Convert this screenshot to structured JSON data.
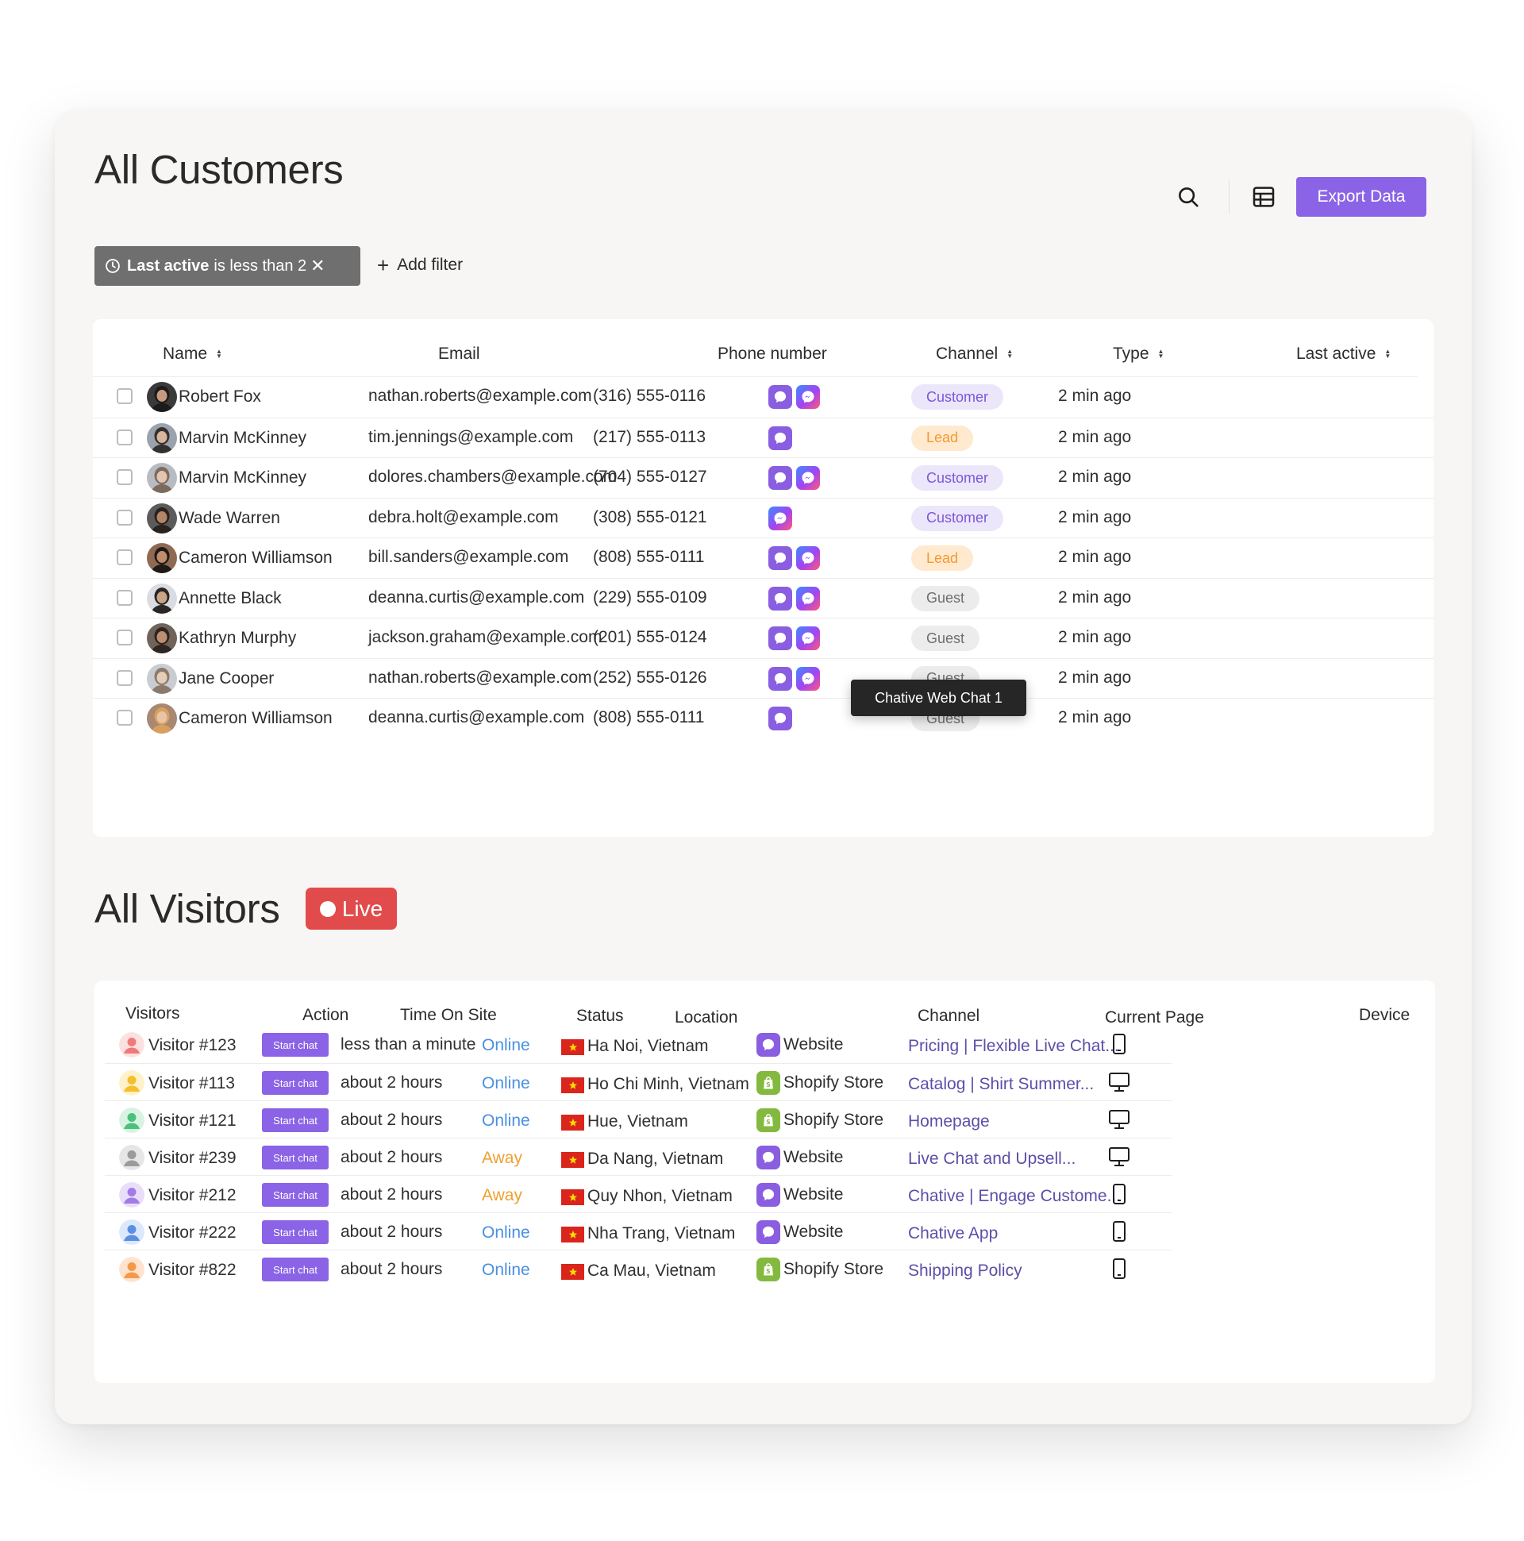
{
  "customers": {
    "title": "All Customers",
    "export_label": "Export Data",
    "filter": {
      "field": "Last active",
      "condition": "is less than 2",
      "remove": "✕"
    },
    "add_filter_label": "Add filter",
    "columns": {
      "name": "Name",
      "email": "Email",
      "phone": "Phone number",
      "channel": "Channel",
      "type": "Type",
      "last_active": "Last active"
    },
    "rows": [
      {
        "name": "Robert Fox",
        "email": "nathan.roberts@example.com",
        "phone": "(316) 555-0116",
        "type": "Customer",
        "last_active": "2 min ago"
      },
      {
        "name": "Marvin McKinney",
        "email": "tim.jennings@example.com",
        "phone": "(217) 555-0113",
        "type": "Lead",
        "last_active": "2 min ago"
      },
      {
        "name": "Marvin McKinney",
        "email": "dolores.chambers@example.com",
        "phone": "(704) 555-0127",
        "type": "Customer",
        "last_active": "2 min ago"
      },
      {
        "name": "Wade Warren",
        "email": "debra.holt@example.com",
        "phone": "(308) 555-0121",
        "type": "Customer",
        "last_active": "2 min ago"
      },
      {
        "name": "Cameron Williamson",
        "email": "bill.sanders@example.com",
        "phone": "(808) 555-0111",
        "type": "Lead",
        "last_active": "2 min ago"
      },
      {
        "name": "Annette Black",
        "email": "deanna.curtis@example.com",
        "phone": "(229) 555-0109",
        "type": "Guest",
        "last_active": "2 min ago"
      },
      {
        "name": "Kathryn Murphy",
        "email": "jackson.graham@example.com",
        "phone": "(201) 555-0124",
        "type": "Guest",
        "last_active": "2 min ago"
      },
      {
        "name": "Jane Cooper",
        "email": "nathan.roberts@example.com",
        "phone": "(252) 555-0126",
        "type": "Guest",
        "last_active": "2 min ago"
      },
      {
        "name": "Cameron Williamson",
        "email": "deanna.curtis@example.com",
        "phone": "(808) 555-0111",
        "type": "Guest",
        "last_active": "2 min ago"
      }
    ],
    "tooltip": "Chative Web Chat 1"
  },
  "visitors": {
    "title": "All Visitors",
    "live_label": "Live",
    "columns": {
      "visitors": "Visitors",
      "action": "Action",
      "time": "Time On Site",
      "status": "Status",
      "location": "Location",
      "channel": "Channel",
      "page": "Current Page",
      "device": "Device"
    },
    "start_chat_label": "Start chat",
    "rows": [
      {
        "name": "Visitor #123",
        "time": "less than a minute",
        "status": "Online",
        "location": "Ha Noi, Vietnam",
        "channel": "Website",
        "page": "Pricing | Flexible Live Chat..."
      },
      {
        "name": "Visitor #113",
        "time": "about 2 hours",
        "status": "Online",
        "location": "Ho Chi Minh, Vietnam",
        "channel": "Shopify Store",
        "page": "Catalog | Shirt Summer..."
      },
      {
        "name": "Visitor #121",
        "time": "about 2 hours",
        "status": "Online",
        "location": "Hue, Vietnam",
        "channel": "Shopify Store",
        "page": "Homepage"
      },
      {
        "name": "Visitor #239",
        "time": "about 2 hours",
        "status": "Away",
        "location": "Da Nang, Vietnam",
        "channel": "Website",
        "page": "Live Chat and Upsell..."
      },
      {
        "name": "Visitor #212",
        "time": "about 2 hours",
        "status": "Away",
        "location": "Quy Nhon, Vietnam",
        "channel": "Website",
        "page": "Chative | Engage Custome..."
      },
      {
        "name": "Visitor #222",
        "time": "about 2 hours",
        "status": "Online",
        "location": "Nha Trang, Vietnam",
        "channel": "Website",
        "page": "Chative App"
      },
      {
        "name": "Visitor #822",
        "time": "about 2 hours",
        "status": "Online",
        "location": "Ca Mau, Vietnam",
        "channel": "Shopify Store",
        "page": "Shipping Policy"
      }
    ]
  },
  "colors": {
    "accent": "#8b63e6",
    "live": "#e14b4b",
    "online": "#4a90e2",
    "away": "#f0a030",
    "customer_bg": "#ece6fb",
    "customer_fg": "#7b57d6",
    "lead_bg": "#ffe9cf",
    "lead_fg": "#f29a2e",
    "guest_bg": "#ececec",
    "guest_fg": "#6e6e6e"
  },
  "icons": {
    "search": "search-icon",
    "table": "table-view-icon",
    "clock": "clock-icon",
    "web_chat": "web-chat-icon",
    "messenger": "messenger-icon",
    "shopify": "shopify-icon",
    "phone": "phone-device-icon",
    "desktop": "desktop-device-icon"
  }
}
